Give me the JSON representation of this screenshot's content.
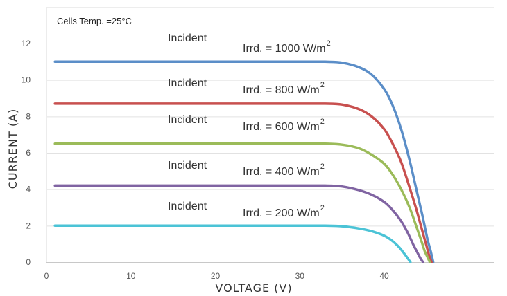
{
  "chart_data": {
    "type": "line",
    "title": "",
    "annotation": "Cells Temp. =25°C",
    "xlabel": "VOLTAGE (V)",
    "ylabel": "CURRENT (A)",
    "xlim": [
      0,
      50
    ],
    "ylim": [
      0,
      14
    ],
    "xticks": [
      0,
      10,
      20,
      30,
      40
    ],
    "yticks": [
      0,
      2,
      4,
      6,
      8,
      10,
      12
    ],
    "grid": "horizontal",
    "legend": "none",
    "series": [
      {
        "label_line1": "Incident",
        "label_line2": "Irrd. = 1000 W/m",
        "label_sup": "2",
        "color": "#5b8ec8",
        "x": [
          1,
          10,
          20,
          30,
          33,
          35,
          37,
          38.5,
          40,
          41,
          42,
          43,
          43.8,
          44.5,
          45.1,
          45.5,
          45.8
        ],
        "y": [
          11,
          11,
          11,
          11,
          11,
          10.95,
          10.7,
          10.3,
          9.5,
          8.6,
          7.3,
          5.6,
          4.0,
          2.6,
          1.3,
          0.6,
          0
        ]
      },
      {
        "label_line1": "Incident",
        "label_line2": "Irrd. = 800  W/m",
        "label_sup": "2",
        "color": "#c8504f",
        "x": [
          1,
          10,
          20,
          30,
          33,
          35,
          37,
          38.5,
          40,
          41,
          42,
          43,
          43.8,
          44.4,
          45,
          45.3,
          45.6
        ],
        "y": [
          8.7,
          8.7,
          8.7,
          8.7,
          8.7,
          8.65,
          8.4,
          8.0,
          7.3,
          6.5,
          5.5,
          4.1,
          2.9,
          1.9,
          0.9,
          0.4,
          0
        ]
      },
      {
        "label_line1": "Incident",
        "label_line2": "Irrd. = 600  W/m",
        "label_sup": "2",
        "color": "#9bbb59",
        "x": [
          1,
          10,
          20,
          30,
          33,
          35,
          37,
          38.5,
          40,
          41,
          42,
          43,
          43.7,
          44.3,
          44.8,
          45.1,
          45.4
        ],
        "y": [
          6.5,
          6.5,
          6.5,
          6.5,
          6.5,
          6.45,
          6.25,
          5.9,
          5.4,
          4.8,
          4.0,
          3.0,
          2.1,
          1.3,
          0.6,
          0.3,
          0
        ]
      },
      {
        "label_line1": "Incident",
        "label_line2": "Irrd. = 400  W/m",
        "label_sup": "2",
        "color": "#8064a2",
        "x": [
          1,
          10,
          20,
          30,
          33,
          35,
          37,
          38.5,
          40,
          41,
          42,
          42.8,
          43.4,
          43.9,
          44.3,
          44.6
        ],
        "y": [
          4.2,
          4.2,
          4.2,
          4.2,
          4.2,
          4.15,
          3.95,
          3.7,
          3.3,
          2.85,
          2.25,
          1.6,
          1.0,
          0.55,
          0.2,
          0
        ]
      },
      {
        "label_line1": "Incident",
        "label_line2": "Irrd. = 200  W/m",
        "label_sup": "2",
        "color": "#4bc3d6",
        "x": [
          1,
          10,
          20,
          30,
          33,
          35,
          37,
          38.5,
          40,
          41,
          41.8,
          42.4,
          42.8,
          43.1
        ],
        "y": [
          2,
          2,
          2,
          2,
          2,
          1.97,
          1.85,
          1.7,
          1.45,
          1.15,
          0.8,
          0.45,
          0.2,
          0
        ]
      }
    ]
  }
}
